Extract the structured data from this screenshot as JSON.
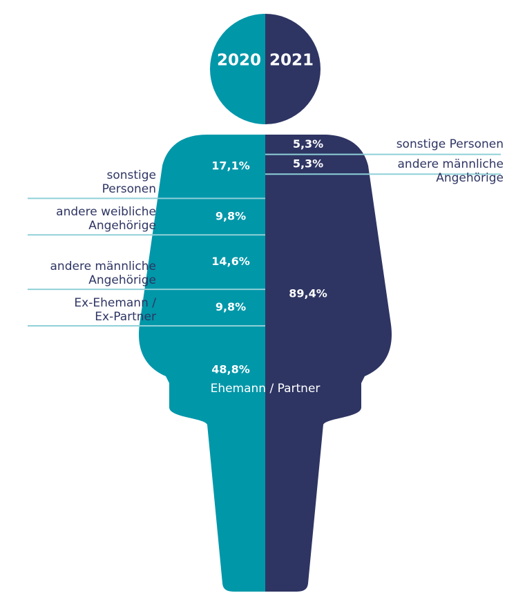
{
  "chart_data": {
    "type": "pictogram",
    "series": [
      {
        "name": "2020",
        "color": "#0097a9",
        "categories": [
          "sonstige\nPersonen",
          "andere weibliche\nAngehörige",
          "andere männliche\nAngehörige",
          "Ex-Ehemann /\nEx-Partner",
          null
        ],
        "values": [
          17.1,
          9.8,
          14.6,
          9.8,
          48.8
        ],
        "value_labels": [
          "17,1%",
          "9,8%",
          "14,6%",
          "9,8%",
          "48,8%"
        ]
      },
      {
        "name": "2021",
        "color": "#2e3563",
        "categories": [
          "sonstige Personen",
          "andere männliche\nAngehörige",
          null
        ],
        "values": [
          5.3,
          5.3,
          89.4
        ],
        "value_labels": [
          "5,3%",
          "5,3%",
          "89,4%"
        ]
      }
    ],
    "common_label": "Ehemann / Partner"
  }
}
